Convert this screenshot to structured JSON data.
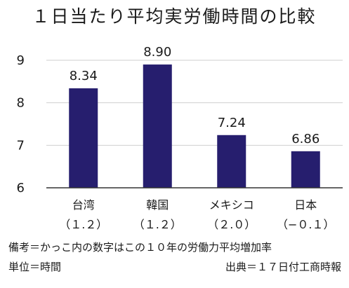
{
  "chart_data": {
    "type": "bar",
    "title": "１日当たり平均実労働時間の比較",
    "categories": [
      "台湾",
      "韓国",
      "メキシコ",
      "日本"
    ],
    "category_sublabels": [
      "（１.２）",
      "（１.２）",
      "（２.０）",
      "（−０.１）"
    ],
    "values": [
      8.34,
      8.9,
      7.24,
      6.86
    ],
    "data_labels": [
      "8.34",
      "8.90",
      "7.24",
      "6.86"
    ],
    "ylim": [
      6,
      9
    ],
    "yticks": [
      6,
      7,
      8,
      9
    ],
    "grid": true,
    "bar_color": "#261e6e",
    "xlabel": "",
    "ylabel": ""
  },
  "notes": {
    "line1": "備考＝かっこ内の数字はこの１０年の労働力平均増加率",
    "unit": "単位＝時間",
    "source": "出典＝１７日付工商時報"
  },
  "colors": {
    "bar": "#261e6e",
    "grid": "#cfcfcf",
    "axis": "#333333"
  }
}
